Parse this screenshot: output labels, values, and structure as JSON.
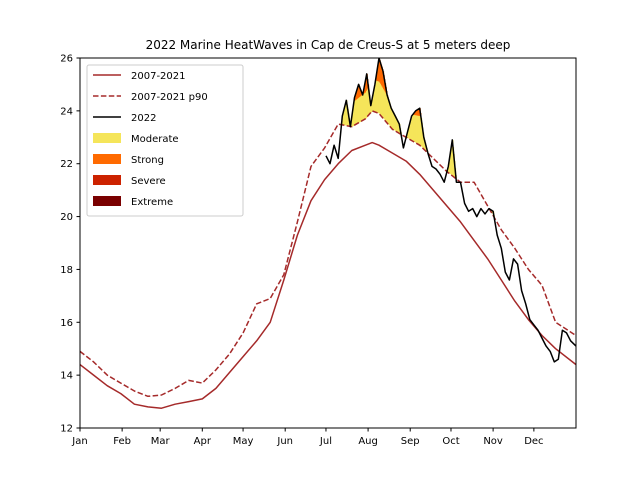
{
  "chart_data": {
    "type": "line",
    "title": "2022 Marine HeatWaves in Cap de Creus-S at 5 meters deep",
    "xlabel": "",
    "ylabel": "",
    "xlim": [
      0,
      365
    ],
    "ylim": [
      12,
      26
    ],
    "x_ticks": [
      {
        "day": 0,
        "label": "Jan"
      },
      {
        "day": 31,
        "label": "Feb"
      },
      {
        "day": 59,
        "label": "Mar"
      },
      {
        "day": 90,
        "label": "Apr"
      },
      {
        "day": 120,
        "label": "May"
      },
      {
        "day": 151,
        "label": "Jun"
      },
      {
        "day": 181,
        "label": "Jul"
      },
      {
        "day": 212,
        "label": "Aug"
      },
      {
        "day": 243,
        "label": "Sep"
      },
      {
        "day": 273,
        "label": "Oct"
      },
      {
        "day": 304,
        "label": "Nov"
      },
      {
        "day": 334,
        "label": "Dec"
      }
    ],
    "y_ticks": [
      12,
      14,
      16,
      18,
      20,
      22,
      24,
      26
    ],
    "grid": false,
    "legend_position": "top-left",
    "series": [
      {
        "name": "2007-2021",
        "style": "solid",
        "color": "#a52a2a",
        "x": [
          0,
          10,
          20,
          30,
          40,
          50,
          60,
          70,
          80,
          90,
          100,
          110,
          120,
          130,
          140,
          150,
          160,
          170,
          180,
          190,
          200,
          210,
          215,
          220,
          230,
          240,
          250,
          260,
          270,
          280,
          290,
          300,
          310,
          320,
          330,
          340,
          350,
          365
        ],
        "y": [
          14.4,
          14.0,
          13.6,
          13.3,
          12.9,
          12.8,
          12.75,
          12.9,
          13.0,
          13.1,
          13.5,
          14.1,
          14.7,
          15.3,
          16.0,
          17.6,
          19.3,
          20.6,
          21.4,
          22.0,
          22.5,
          22.7,
          22.8,
          22.7,
          22.4,
          22.1,
          21.6,
          21.0,
          20.4,
          19.8,
          19.1,
          18.4,
          17.6,
          16.8,
          16.1,
          15.5,
          15.0,
          14.4
        ]
      },
      {
        "name": "2007-2021 p90",
        "style": "dashed",
        "color": "#a52a2a",
        "x": [
          0,
          10,
          20,
          30,
          40,
          50,
          60,
          70,
          80,
          90,
          100,
          110,
          120,
          130,
          140,
          150,
          160,
          170,
          180,
          190,
          200,
          210,
          215,
          220,
          230,
          240,
          250,
          260,
          270,
          280,
          290,
          300,
          310,
          320,
          330,
          340,
          350,
          365
        ],
        "y": [
          14.9,
          14.5,
          14.0,
          13.7,
          13.4,
          13.2,
          13.25,
          13.5,
          13.8,
          13.7,
          14.2,
          14.8,
          15.6,
          16.7,
          16.9,
          17.8,
          19.8,
          21.9,
          22.6,
          23.5,
          23.4,
          23.7,
          24.0,
          23.9,
          23.3,
          23.0,
          22.7,
          22.2,
          21.7,
          21.3,
          21.3,
          20.4,
          19.5,
          18.8,
          18.0,
          17.4,
          16.0,
          15.5
        ]
      },
      {
        "name": "2022",
        "style": "solid",
        "color": "#000000",
        "x": [
          181,
          184,
          187,
          190,
          193,
          196,
          199,
          202,
          205,
          208,
          211,
          214,
          217,
          220,
          223,
          226,
          229,
          232,
          235,
          238,
          241,
          244,
          247,
          250,
          253,
          256,
          259,
          262,
          265,
          268,
          271,
          274,
          277,
          280,
          283,
          286,
          289,
          292,
          295,
          298,
          301,
          304,
          307,
          310,
          313,
          316,
          319,
          322,
          325,
          328,
          331,
          334,
          337,
          340,
          343,
          346,
          349,
          352,
          355,
          358,
          361,
          365
        ],
        "y": [
          22.3,
          22.0,
          22.7,
          22.2,
          23.8,
          24.4,
          23.4,
          24.5,
          25.0,
          24.6,
          25.4,
          24.2,
          25.0,
          26.0,
          25.5,
          24.6,
          24.1,
          23.8,
          23.5,
          22.6,
          23.2,
          23.8,
          24.0,
          24.1,
          23.0,
          22.4,
          21.9,
          21.8,
          21.6,
          21.3,
          21.9,
          22.9,
          21.3,
          21.3,
          20.5,
          20.2,
          20.3,
          20.0,
          20.3,
          20.1,
          20.3,
          20.2,
          19.3,
          18.8,
          17.9,
          17.6,
          18.4,
          18.2,
          17.2,
          16.7,
          16.1,
          15.9,
          15.7,
          15.4,
          15.1,
          14.9,
          14.5,
          14.6,
          15.7,
          15.6,
          15.3,
          15.1
        ]
      }
    ],
    "categories_shaded": [
      {
        "name": "Moderate",
        "color": "#f5e55a"
      },
      {
        "name": "Strong",
        "color": "#ff6a00"
      },
      {
        "name": "Severe",
        "color": "#cc2200"
      },
      {
        "name": "Extreme",
        "color": "#7a0000"
      }
    ]
  }
}
